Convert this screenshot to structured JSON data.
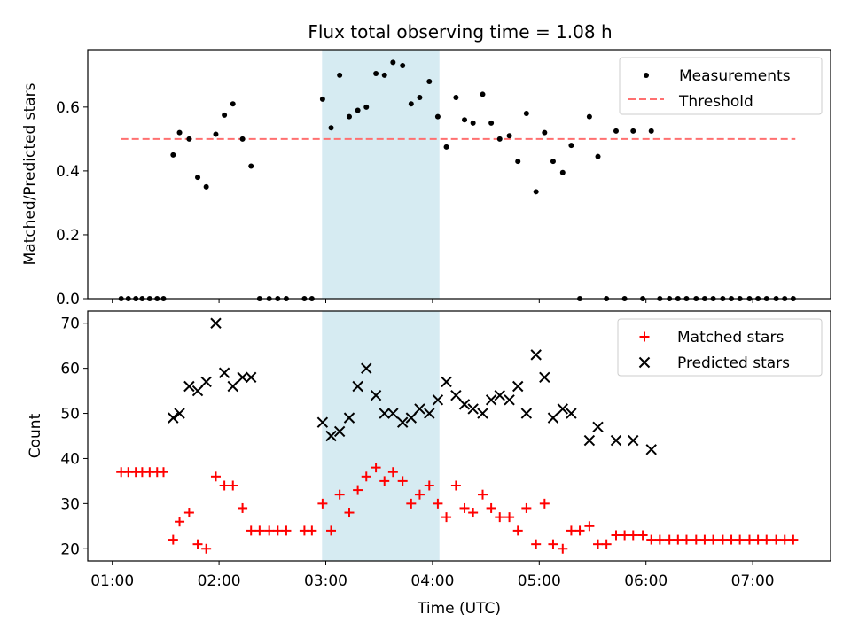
{
  "title": "Flux total observing time = 1.08 h",
  "chart_data": [
    {
      "type": "scatter",
      "ylabel": "Matched/Predicted stars",
      "ylim": [
        0,
        0.78
      ],
      "yticks": [
        0.0,
        0.2,
        0.4,
        0.6
      ],
      "threshold": 0.5,
      "threshold_x": [
        1.083,
        7.4
      ],
      "series": [
        {
          "name": "Measurements",
          "color": "#000000",
          "points": [
            [
              1.083,
              0.0
            ],
            [
              1.15,
              0.0
            ],
            [
              1.22,
              0.0
            ],
            [
              1.28,
              0.0
            ],
            [
              1.35,
              0.0
            ],
            [
              1.42,
              0.0
            ],
            [
              1.48,
              0.0
            ],
            [
              1.57,
              0.45
            ],
            [
              1.63,
              0.52
            ],
            [
              1.72,
              0.5
            ],
            [
              1.8,
              0.38
            ],
            [
              1.88,
              0.35
            ],
            [
              1.97,
              0.515
            ],
            [
              2.05,
              0.575
            ],
            [
              2.13,
              0.61
            ],
            [
              2.22,
              0.5
            ],
            [
              2.3,
              0.415
            ],
            [
              2.38,
              0.0
            ],
            [
              2.47,
              0.0
            ],
            [
              2.55,
              0.0
            ],
            [
              2.63,
              0.0
            ],
            [
              2.8,
              0.0
            ],
            [
              2.87,
              0.0
            ],
            [
              2.97,
              0.625
            ],
            [
              3.05,
              0.535
            ],
            [
              3.13,
              0.7
            ],
            [
              3.22,
              0.57
            ],
            [
              3.3,
              0.59
            ],
            [
              3.38,
              0.6
            ],
            [
              3.47,
              0.705
            ],
            [
              3.55,
              0.7
            ],
            [
              3.63,
              0.74
            ],
            [
              3.72,
              0.73
            ],
            [
              3.8,
              0.61
            ],
            [
              3.88,
              0.63
            ],
            [
              3.97,
              0.68
            ],
            [
              4.05,
              0.57
            ],
            [
              4.13,
              0.475
            ],
            [
              4.22,
              0.63
            ],
            [
              4.3,
              0.56
            ],
            [
              4.38,
              0.55
            ],
            [
              4.47,
              0.64
            ],
            [
              4.55,
              0.55
            ],
            [
              4.63,
              0.5
            ],
            [
              4.72,
              0.51
            ],
            [
              4.8,
              0.43
            ],
            [
              4.88,
              0.58
            ],
            [
              4.97,
              0.335
            ],
            [
              5.05,
              0.52
            ],
            [
              5.13,
              0.43
            ],
            [
              5.22,
              0.395
            ],
            [
              5.3,
              0.48
            ],
            [
              5.38,
              0.0
            ],
            [
              5.47,
              0.57
            ],
            [
              5.55,
              0.445
            ],
            [
              5.63,
              0.0
            ],
            [
              5.72,
              0.525
            ],
            [
              5.8,
              0.0
            ],
            [
              5.88,
              0.525
            ],
            [
              5.97,
              0.0
            ],
            [
              6.05,
              0.525
            ],
            [
              6.13,
              0.0
            ],
            [
              6.22,
              0.0
            ],
            [
              6.3,
              0.0
            ],
            [
              6.38,
              0.0
            ],
            [
              6.47,
              0.0
            ],
            [
              6.55,
              0.0
            ],
            [
              6.63,
              0.0
            ],
            [
              6.72,
              0.0
            ],
            [
              6.8,
              0.0
            ],
            [
              6.88,
              0.0
            ],
            [
              6.97,
              0.0
            ],
            [
              7.05,
              0.0
            ],
            [
              7.13,
              0.0
            ],
            [
              7.22,
              0.0
            ],
            [
              7.3,
              0.0
            ],
            [
              7.38,
              0.0
            ]
          ]
        },
        {
          "name": "Threshold",
          "color": "#ff7070",
          "style": "dashed"
        }
      ],
      "legend_position": "top-right"
    },
    {
      "type": "scatter",
      "xlabel": "Time (UTC)",
      "ylabel": "Count",
      "xlim": [
        0.77,
        7.73
      ],
      "ylim": [
        17.3,
        72.7
      ],
      "xticks": [
        "01:00",
        "02:00",
        "03:00",
        "04:00",
        "05:00",
        "06:00",
        "07:00"
      ],
      "yticks": [
        20,
        30,
        40,
        50,
        60,
        70
      ],
      "series": [
        {
          "name": "Matched stars",
          "color": "#ff0000",
          "marker": "+",
          "points": [
            [
              1.083,
              37
            ],
            [
              1.15,
              37
            ],
            [
              1.22,
              37
            ],
            [
              1.28,
              37
            ],
            [
              1.35,
              37
            ],
            [
              1.42,
              37
            ],
            [
              1.48,
              37
            ],
            [
              1.57,
              22
            ],
            [
              1.63,
              26
            ],
            [
              1.72,
              28
            ],
            [
              1.8,
              21
            ],
            [
              1.88,
              20
            ],
            [
              1.97,
              36
            ],
            [
              2.05,
              34
            ],
            [
              2.13,
              34
            ],
            [
              2.22,
              29
            ],
            [
              2.3,
              24
            ],
            [
              2.38,
              24
            ],
            [
              2.47,
              24
            ],
            [
              2.55,
              24
            ],
            [
              2.63,
              24
            ],
            [
              2.8,
              24
            ],
            [
              2.87,
              24
            ],
            [
              2.97,
              30
            ],
            [
              3.05,
              24
            ],
            [
              3.13,
              32
            ],
            [
              3.22,
              28
            ],
            [
              3.3,
              33
            ],
            [
              3.38,
              36
            ],
            [
              3.47,
              38
            ],
            [
              3.55,
              35
            ],
            [
              3.63,
              37
            ],
            [
              3.72,
              35
            ],
            [
              3.8,
              30
            ],
            [
              3.88,
              32
            ],
            [
              3.97,
              34
            ],
            [
              4.05,
              30
            ],
            [
              4.13,
              27
            ],
            [
              4.22,
              34
            ],
            [
              4.3,
              29
            ],
            [
              4.38,
              28
            ],
            [
              4.47,
              32
            ],
            [
              4.55,
              29
            ],
            [
              4.63,
              27
            ],
            [
              4.72,
              27
            ],
            [
              4.8,
              24
            ],
            [
              4.88,
              29
            ],
            [
              4.97,
              21
            ],
            [
              5.05,
              30
            ],
            [
              5.13,
              21
            ],
            [
              5.22,
              20
            ],
            [
              5.3,
              24
            ],
            [
              5.38,
              24
            ],
            [
              5.47,
              25
            ],
            [
              5.55,
              21
            ],
            [
              5.63,
              21
            ],
            [
              5.72,
              23
            ],
            [
              5.8,
              23
            ],
            [
              5.88,
              23
            ],
            [
              5.97,
              23
            ],
            [
              6.05,
              22
            ],
            [
              6.13,
              22
            ],
            [
              6.22,
              22
            ],
            [
              6.3,
              22
            ],
            [
              6.38,
              22
            ],
            [
              6.47,
              22
            ],
            [
              6.55,
              22
            ],
            [
              6.63,
              22
            ],
            [
              6.72,
              22
            ],
            [
              6.8,
              22
            ],
            [
              6.88,
              22
            ],
            [
              6.97,
              22
            ],
            [
              7.05,
              22
            ],
            [
              7.13,
              22
            ],
            [
              7.22,
              22
            ],
            [
              7.3,
              22
            ],
            [
              7.38,
              22
            ]
          ]
        },
        {
          "name": "Predicted stars",
          "color": "#000000",
          "marker": "x",
          "points": [
            [
              1.57,
              49
            ],
            [
              1.63,
              50
            ],
            [
              1.72,
              56
            ],
            [
              1.8,
              55
            ],
            [
              1.88,
              57
            ],
            [
              1.97,
              70
            ],
            [
              2.05,
              59
            ],
            [
              2.13,
              56
            ],
            [
              2.22,
              58
            ],
            [
              2.3,
              58
            ],
            [
              2.97,
              48
            ],
            [
              3.05,
              45
            ],
            [
              3.13,
              46
            ],
            [
              3.22,
              49
            ],
            [
              3.3,
              56
            ],
            [
              3.38,
              60
            ],
            [
              3.47,
              54
            ],
            [
              3.55,
              50
            ],
            [
              3.63,
              50
            ],
            [
              3.72,
              48
            ],
            [
              3.8,
              49
            ],
            [
              3.88,
              51
            ],
            [
              3.97,
              50
            ],
            [
              4.05,
              53
            ],
            [
              4.13,
              57
            ],
            [
              4.22,
              54
            ],
            [
              4.3,
              52
            ],
            [
              4.38,
              51
            ],
            [
              4.47,
              50
            ],
            [
              4.55,
              53
            ],
            [
              4.63,
              54
            ],
            [
              4.72,
              53
            ],
            [
              4.8,
              56
            ],
            [
              4.88,
              50
            ],
            [
              4.97,
              63
            ],
            [
              5.05,
              58
            ],
            [
              5.13,
              49
            ],
            [
              5.22,
              51
            ],
            [
              5.3,
              50
            ],
            [
              5.47,
              44
            ],
            [
              5.55,
              47
            ],
            [
              5.72,
              44
            ],
            [
              5.88,
              44
            ],
            [
              6.05,
              42
            ]
          ]
        }
      ],
      "legend_position": "top-right"
    }
  ],
  "highlight_span": {
    "x_start": 2.965,
    "x_end": 4.065,
    "color": "#add8e6"
  }
}
